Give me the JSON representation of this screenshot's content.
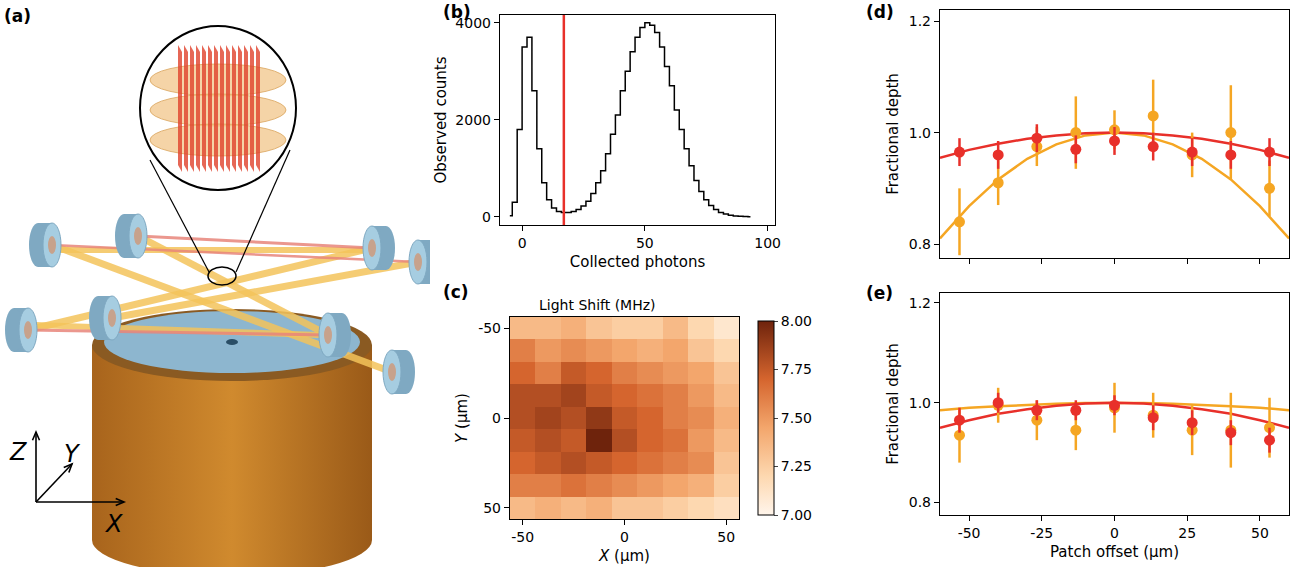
{
  "diagram": {
    "panel": "(a)",
    "axes": [
      "Z",
      "Y",
      "X"
    ]
  },
  "chart_data": [
    {
      "panel": "(b)",
      "type": "histogram",
      "xlabel": "Collected photons",
      "ylabel": "Observed counts",
      "bins": [
        -6,
        -4,
        -2,
        0,
        2,
        4,
        6,
        8,
        10,
        12,
        14,
        16,
        18,
        20,
        22,
        24,
        26,
        28,
        30,
        32,
        34,
        36,
        38,
        40,
        42,
        44,
        46,
        48,
        50,
        52,
        54,
        56,
        58,
        60,
        62,
        64,
        66,
        68,
        70,
        72,
        74,
        76,
        78,
        80,
        82,
        84,
        86,
        88,
        90,
        92,
        94
      ],
      "values": [
        20,
        300,
        1800,
        3500,
        3700,
        2600,
        1400,
        700,
        350,
        180,
        110,
        90,
        90,
        110,
        150,
        220,
        320,
        480,
        700,
        950,
        1300,
        1700,
        2100,
        2600,
        3000,
        3400,
        3700,
        3900,
        4000,
        3950,
        3800,
        3500,
        3100,
        2700,
        2200,
        1800,
        1400,
        1050,
        750,
        520,
        350,
        230,
        150,
        90,
        55,
        30,
        18,
        10,
        5,
        2
      ],
      "color": "#000000",
      "xlim": [
        -9,
        103
      ],
      "xticks": [
        0,
        50,
        100
      ],
      "ylim": [
        -170,
        4160
      ],
      "yticks": [
        0,
        2000,
        4000
      ],
      "vline": {
        "x": 17,
        "color": "#e8302a"
      }
    },
    {
      "panel": "(c)",
      "type": "heatmap",
      "title": "Light Shift (MHz)",
      "xlabel": "X (µm)",
      "ylabel": "Y (µm)",
      "x": [
        -50,
        -37.5,
        -25,
        -12.5,
        0,
        12.5,
        25,
        37.5,
        50
      ],
      "y": [
        -50,
        -37.5,
        -25,
        -12.5,
        0,
        12.5,
        25,
        37.5,
        50
      ],
      "cells": [
        [
          7.35,
          7.35,
          7.4,
          7.3,
          7.25,
          7.25,
          7.35,
          7.2,
          7.1
        ],
        [
          7.6,
          7.5,
          7.55,
          7.5,
          7.45,
          7.4,
          7.45,
          7.3,
          7.2
        ],
        [
          7.7,
          7.6,
          7.75,
          7.7,
          7.6,
          7.55,
          7.5,
          7.45,
          7.3
        ],
        [
          7.8,
          7.8,
          7.85,
          7.75,
          7.7,
          7.65,
          7.6,
          7.5,
          7.35
        ],
        [
          7.8,
          7.85,
          7.8,
          7.9,
          7.75,
          7.7,
          7.6,
          7.55,
          7.4
        ],
        [
          7.75,
          7.8,
          7.75,
          8.0,
          7.8,
          7.7,
          7.65,
          7.5,
          7.35
        ],
        [
          7.7,
          7.75,
          7.8,
          7.75,
          7.7,
          7.65,
          7.6,
          7.55,
          7.3
        ],
        [
          7.6,
          7.6,
          7.65,
          7.6,
          7.55,
          7.5,
          7.45,
          7.4,
          7.25
        ],
        [
          7.35,
          7.4,
          7.35,
          7.4,
          7.3,
          7.3,
          7.25,
          7.2,
          7.15
        ]
      ],
      "xlim": [
        -56.25,
        56.25
      ],
      "xticks": [
        -50,
        0,
        50
      ],
      "ylim": [
        56.25,
        -56.25
      ],
      "yticks": [
        -50,
        0,
        50
      ],
      "colorbar": {
        "range": [
          7.0,
          8.0
        ],
        "ticks": [
          {
            "value": 7.0,
            "label": "7.00"
          },
          {
            "value": 7.25,
            "label": "7.25"
          },
          {
            "value": 7.5,
            "label": "7.50"
          },
          {
            "value": 7.75,
            "label": "7.75"
          },
          {
            "value": 8.0,
            "label": "8.00"
          }
        ]
      }
    },
    {
      "panel": "(d)",
      "type": "scatter",
      "ylabel": "Fractional depth",
      "x": [
        -53.3,
        -40,
        -26.7,
        -13.3,
        0,
        13.3,
        26.7,
        40,
        53.3
      ],
      "series": [
        {
          "color": "#f5a623",
          "values": [
            0.84,
            0.91,
            0.975,
            1.0,
            1.005,
            1.03,
            0.96,
            1.0,
            0.9
          ],
          "errors": [
            0.06,
            0.04,
            0.035,
            0.065,
            0.035,
            0.065,
            0.04,
            0.085,
            0.05
          ],
          "fit": {
            "x": [
              -60,
              -50,
              -40,
              -30,
              -20,
              -10,
              0,
              10,
              20,
              30,
              40,
              50,
              60
            ],
            "values": [
              0.81,
              0.868,
              0.916,
              0.953,
              0.979,
              0.995,
              1.0,
              0.995,
              0.979,
              0.953,
              0.916,
              0.868,
              0.81
            ]
          }
        },
        {
          "color": "#e8302a",
          "values": [
            0.965,
            0.96,
            0.99,
            0.97,
            0.985,
            0.975,
            0.965,
            0.96,
            0.965
          ],
          "errors": [
            0.025,
            0.025,
            0.025,
            0.025,
            0.025,
            0.025,
            0.025,
            0.025,
            0.025
          ],
          "fit": {
            "x": [
              -60,
              -50,
              -40,
              -30,
              -20,
              -10,
              0,
              10,
              20,
              30,
              40,
              50,
              60
            ],
            "values": [
              0.955,
              0.969,
              0.98,
              0.989,
              0.995,
              0.999,
              1.0,
              0.999,
              0.995,
              0.989,
              0.98,
              0.969,
              0.955
            ]
          }
        }
      ],
      "xlim": [
        -60,
        60
      ],
      "xticks": [
        -50,
        -25,
        0,
        25,
        50
      ],
      "ylim": [
        0.775,
        1.22
      ],
      "yticks": [
        0.8,
        {
          "value": 1.0,
          "label": "1.0"
        },
        1.2
      ],
      "tick_labels": "y"
    },
    {
      "panel": "(e)",
      "type": "scatter",
      "xlabel": "Patch offset (µm)",
      "ylabel": "Fractional depth",
      "x": [
        -53.3,
        -40,
        -26.7,
        -13.3,
        0,
        13.3,
        26.7,
        40,
        53.3
      ],
      "series": [
        {
          "color": "#f5a623",
          "values": [
            0.935,
            0.995,
            0.965,
            0.945,
            0.99,
            0.975,
            0.945,
            0.945,
            0.95
          ],
          "errors": [
            0.055,
            0.035,
            0.04,
            0.04,
            0.05,
            0.045,
            0.05,
            0.075,
            0.06
          ],
          "fit": {
            "x": [
              -60,
              -50,
              -40,
              -30,
              -20,
              -10,
              0,
              10,
              20,
              30,
              40,
              50,
              60
            ],
            "values": [
              0.985,
              0.99,
              0.993,
              0.996,
              0.998,
              0.9996,
              1.0,
              0.9996,
              0.998,
              0.996,
              0.993,
              0.99,
              0.985
            ]
          }
        },
        {
          "color": "#e8302a",
          "values": [
            0.965,
            1.0,
            0.985,
            0.985,
            0.995,
            0.97,
            0.96,
            0.94,
            0.925
          ],
          "errors": [
            0.025,
            0.02,
            0.02,
            0.02,
            0.02,
            0.025,
            0.025,
            0.025,
            0.025
          ],
          "fit": {
            "x": [
              -60,
              -50,
              -40,
              -30,
              -20,
              -10,
              0,
              10,
              20,
              30,
              40,
              50,
              60
            ],
            "values": [
              0.95,
              0.965,
              0.978,
              0.987,
              0.994,
              0.9986,
              1.0,
              0.9986,
              0.994,
              0.987,
              0.978,
              0.965,
              0.95
            ]
          }
        }
      ],
      "xlim": [
        -60,
        60
      ],
      "xticks": [
        -50,
        -25,
        0,
        25,
        50
      ],
      "ylim": [
        0.775,
        1.22
      ],
      "yticks": [
        0.8,
        {
          "value": 1.0,
          "label": "1.0"
        },
        1.2
      ]
    }
  ]
}
